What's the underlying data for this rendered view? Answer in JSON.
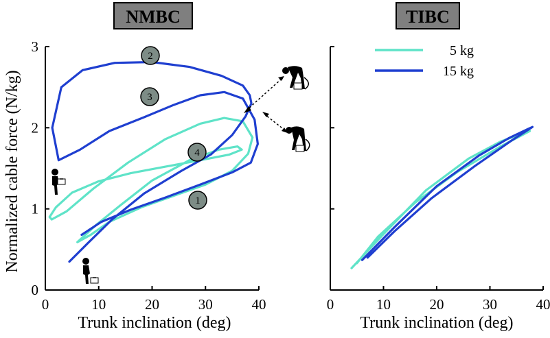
{
  "chart_data": [
    {
      "type": "line",
      "title": "NMBC",
      "xlabel": "Trunk inclination (deg)",
      "ylabel": "Normalized cable force (N/kg)",
      "xlim": [
        0,
        40
      ],
      "ylim": [
        0,
        3
      ],
      "xticks": [
        "0",
        "10",
        "20",
        "30",
        "40"
      ],
      "yticks": [
        "0",
        "1",
        "2",
        "3"
      ],
      "colors": {
        "5 kg": "#5fe3c8",
        "15 kg": "#1f3fd0"
      },
      "series": [
        {
          "name": "5 kg",
          "x": [
            6.0,
            9.5,
            14.0,
            20.0,
            27.0,
            32.5,
            36.0,
            36.8,
            34.5,
            29.0,
            22.5,
            16.0,
            10.0,
            5.0,
            2.0,
            0.8,
            1.2,
            4.0,
            9.0,
            15.5,
            22.5,
            29.0,
            33.5,
            37.0,
            38.8,
            38.0,
            35.0,
            30.0,
            24.0,
            18.0,
            12.0,
            8.5,
            6.0
          ],
          "y": [
            0.59,
            0.8,
            1.04,
            1.35,
            1.6,
            1.73,
            1.77,
            1.73,
            1.67,
            1.6,
            1.52,
            1.44,
            1.34,
            1.2,
            1.02,
            0.9,
            0.87,
            0.97,
            1.25,
            1.57,
            1.86,
            2.05,
            2.12,
            2.08,
            1.88,
            1.68,
            1.47,
            1.3,
            1.16,
            1.02,
            0.84,
            0.68,
            0.59
          ]
        },
        {
          "name": "15 kg",
          "x": [
            4.5,
            8.0,
            12.5,
            18.5,
            25.5,
            31.0,
            35.0,
            37.5,
            38.6,
            38.3,
            37.0,
            33.0,
            27.0,
            20.0,
            13.0,
            7.0,
            3.0,
            1.3,
            2.5,
            6.5,
            12.0,
            18.5,
            24.0,
            29.0,
            33.5,
            37.0,
            39.2,
            39.8,
            38.5,
            35.0,
            29.0,
            22.5,
            16.0,
            10.5,
            6.8
          ],
          "y": [
            0.35,
            0.58,
            0.87,
            1.19,
            1.47,
            1.67,
            1.91,
            2.14,
            2.3,
            2.4,
            2.52,
            2.64,
            2.75,
            2.81,
            2.8,
            2.71,
            2.5,
            2.0,
            1.6,
            1.73,
            1.96,
            2.13,
            2.28,
            2.4,
            2.44,
            2.36,
            2.1,
            1.8,
            1.57,
            1.45,
            1.3,
            1.14,
            0.99,
            0.84,
            0.68
          ]
        }
      ],
      "annotations": [
        "1",
        "2",
        "3",
        "4"
      ]
    },
    {
      "type": "line",
      "title": "TIBC",
      "xlabel": "Trunk inclination (deg)",
      "ylabel": "",
      "xlim": [
        0,
        40
      ],
      "ylim": [
        0,
        3
      ],
      "xticks": [
        "0",
        "10",
        "20",
        "30",
        "40"
      ],
      "yticks": [],
      "legend": {
        "position": "top",
        "entries": [
          "5 kg",
          "15 kg"
        ]
      },
      "series": [
        {
          "name": "5 kg",
          "x": [
            4.0,
            10.0,
            18.0,
            26.0,
            32.0,
            36.5,
            37.5,
            32.0,
            24.0,
            16.0,
            9.0,
            5.0
          ],
          "y": [
            0.27,
            0.69,
            1.23,
            1.62,
            1.83,
            1.94,
            1.96,
            1.77,
            1.46,
            1.08,
            0.66,
            0.33
          ]
        },
        {
          "name": "15 kg",
          "x": [
            6.0,
            12.0,
            20.0,
            28.0,
            33.5,
            37.0,
            38.0,
            34.0,
            27.0,
            19.0,
            12.0,
            7.0
          ],
          "y": [
            0.37,
            0.77,
            1.28,
            1.66,
            1.87,
            1.98,
            2.01,
            1.84,
            1.52,
            1.13,
            0.72,
            0.4
          ]
        }
      ]
    }
  ]
}
